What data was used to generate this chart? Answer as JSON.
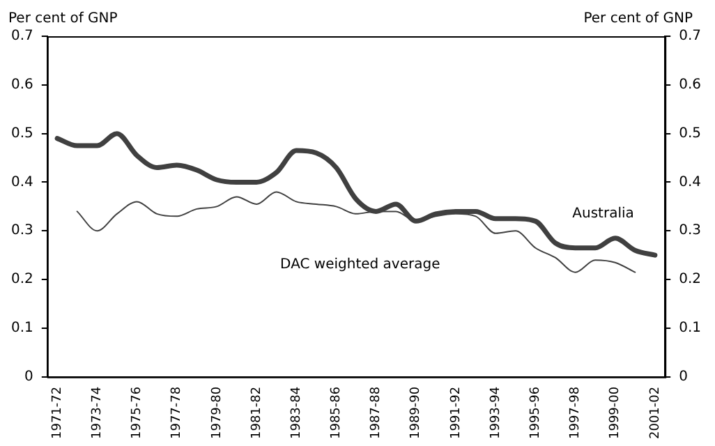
{
  "chart_data": {
    "type": "line",
    "ylabel": "Per cent of GNP",
    "y2label": "Per cent of GNP",
    "categories": [
      "1971-72",
      null,
      "1973-74",
      null,
      "1975-76",
      null,
      "1977-78",
      null,
      "1979-80",
      null,
      "1981-82",
      null,
      "1983-84",
      null,
      "1985-86",
      null,
      "1987-88",
      null,
      "1989-90",
      null,
      "1991-92",
      null,
      "1993-94",
      null,
      "1995-96",
      null,
      "1997-98",
      null,
      "1999-00",
      null,
      "2001-02"
    ],
    "series": [
      {
        "name": "Australia",
        "color": "#404040",
        "values": [
          0.49,
          0.475,
          0.475,
          0.5,
          0.455,
          0.43,
          0.435,
          0.425,
          0.405,
          0.4,
          0.4,
          0.42,
          0.465,
          0.46,
          0.43,
          0.365,
          0.34,
          0.355,
          0.32,
          0.335,
          0.34,
          0.34,
          0.325,
          0.325,
          0.32,
          0.275,
          0.265,
          0.265,
          0.285,
          0.26,
          0.25
        ]
      },
      {
        "name": "DAC weighted average",
        "color": "#404040",
        "values": [
          null,
          0.34,
          0.3,
          0.335,
          0.36,
          0.335,
          0.33,
          0.345,
          0.35,
          0.37,
          0.355,
          0.38,
          0.36,
          0.355,
          0.35,
          0.335,
          0.34,
          0.34,
          0.32,
          0.33,
          0.335,
          0.33,
          0.295,
          0.3,
          0.265,
          0.245,
          0.215,
          0.24,
          0.235,
          0.215,
          null
        ]
      }
    ],
    "ylim": [
      0,
      0.7
    ],
    "yticks": [
      0,
      0.1,
      0.2,
      0.3,
      0.4,
      0.5,
      0.6,
      0.7
    ],
    "y2lim": [
      0,
      0.7
    ],
    "y2ticks": [
      0,
      0.1,
      0.2,
      0.3,
      0.4,
      0.5,
      0.6,
      0.7
    ],
    "grid": false,
    "legend": false,
    "marker": "none",
    "line_style": "solid"
  }
}
